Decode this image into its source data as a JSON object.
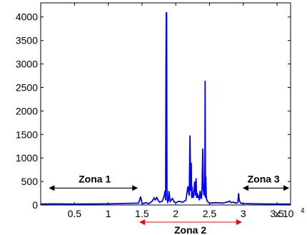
{
  "chart_data": {
    "type": "line",
    "title": "",
    "xlabel": "",
    "ylabel": "",
    "x_multiplier_label": "x 10",
    "x_multiplier_exponent": "4",
    "xlim": [
      0,
      37000
    ],
    "ylim": [
      0,
      4300
    ],
    "xticks": [
      5000,
      10000,
      15000,
      20000,
      25000,
      30000,
      35000
    ],
    "xtick_labels": [
      "0.5",
      "1",
      "1.5",
      "2",
      "2.5",
      "3",
      "3.5"
    ],
    "yticks": [
      0,
      500,
      1000,
      1500,
      2000,
      2500,
      3000,
      3500,
      4000
    ],
    "ytick_labels": [
      "0",
      "500",
      "1000",
      "1500",
      "2000",
      "2500",
      "3000",
      "3500",
      "4000"
    ],
    "grid": false,
    "series": [
      {
        "color": "#0000ff",
        "x": [
          0,
          2000,
          5000,
          10000,
          14500,
          14800,
          15000,
          15200,
          15500,
          16000,
          16500,
          16800,
          17000,
          17200,
          17400,
          17600,
          18000,
          18300,
          18400,
          18500,
          18550,
          18600,
          18650,
          18700,
          18750,
          18800,
          18900,
          19000,
          19100,
          19200,
          19300,
          19500,
          19800,
          20000,
          20500,
          21000,
          21500,
          21800,
          22000,
          22100,
          22200,
          22300,
          22350,
          22400,
          22500,
          22600,
          22700,
          22800,
          22900,
          23000,
          23100,
          23200,
          23300,
          23400,
          23500,
          23600,
          23700,
          23800,
          23900,
          24000,
          24100,
          24200,
          24300,
          24350,
          24400,
          24450,
          24500,
          24600,
          24800,
          25000,
          26000,
          27000,
          28000,
          28200,
          28500,
          29000,
          29200,
          29300,
          29400,
          29600,
          30000,
          32000,
          35000,
          37000
        ],
        "y": [
          20,
          25,
          20,
          25,
          40,
          180,
          40,
          30,
          50,
          30,
          80,
          150,
          110,
          160,
          100,
          60,
          80,
          200,
          300,
          100,
          3000,
          4100,
          4080,
          300,
          100,
          60,
          80,
          300,
          150,
          80,
          100,
          140,
          60,
          50,
          80,
          60,
          100,
          400,
          200,
          1480,
          300,
          900,
          150,
          400,
          200,
          150,
          300,
          500,
          200,
          570,
          150,
          250,
          150,
          200,
          100,
          300,
          180,
          130,
          400,
          1200,
          300,
          200,
          500,
          2640,
          150,
          600,
          200,
          100,
          60,
          40,
          50,
          40,
          80,
          50,
          60,
          40,
          60,
          250,
          100,
          40,
          30,
          25,
          20,
          20
        ]
      }
    ],
    "annotations": [
      {
        "label": "Zona 1",
        "x_from": 1200,
        "x_to": 14400,
        "arrow_y": 360,
        "label_x": 8000,
        "label_y": 480,
        "color": "#000000"
      },
      {
        "label": "Zona 3",
        "x_from": 29900,
        "x_to": 36800,
        "arrow_y": 360,
        "label_x": 33000,
        "label_y": 480,
        "color": "#000000"
      },
      {
        "label": "Zona 2",
        "color": "#ff0000"
      }
    ]
  }
}
